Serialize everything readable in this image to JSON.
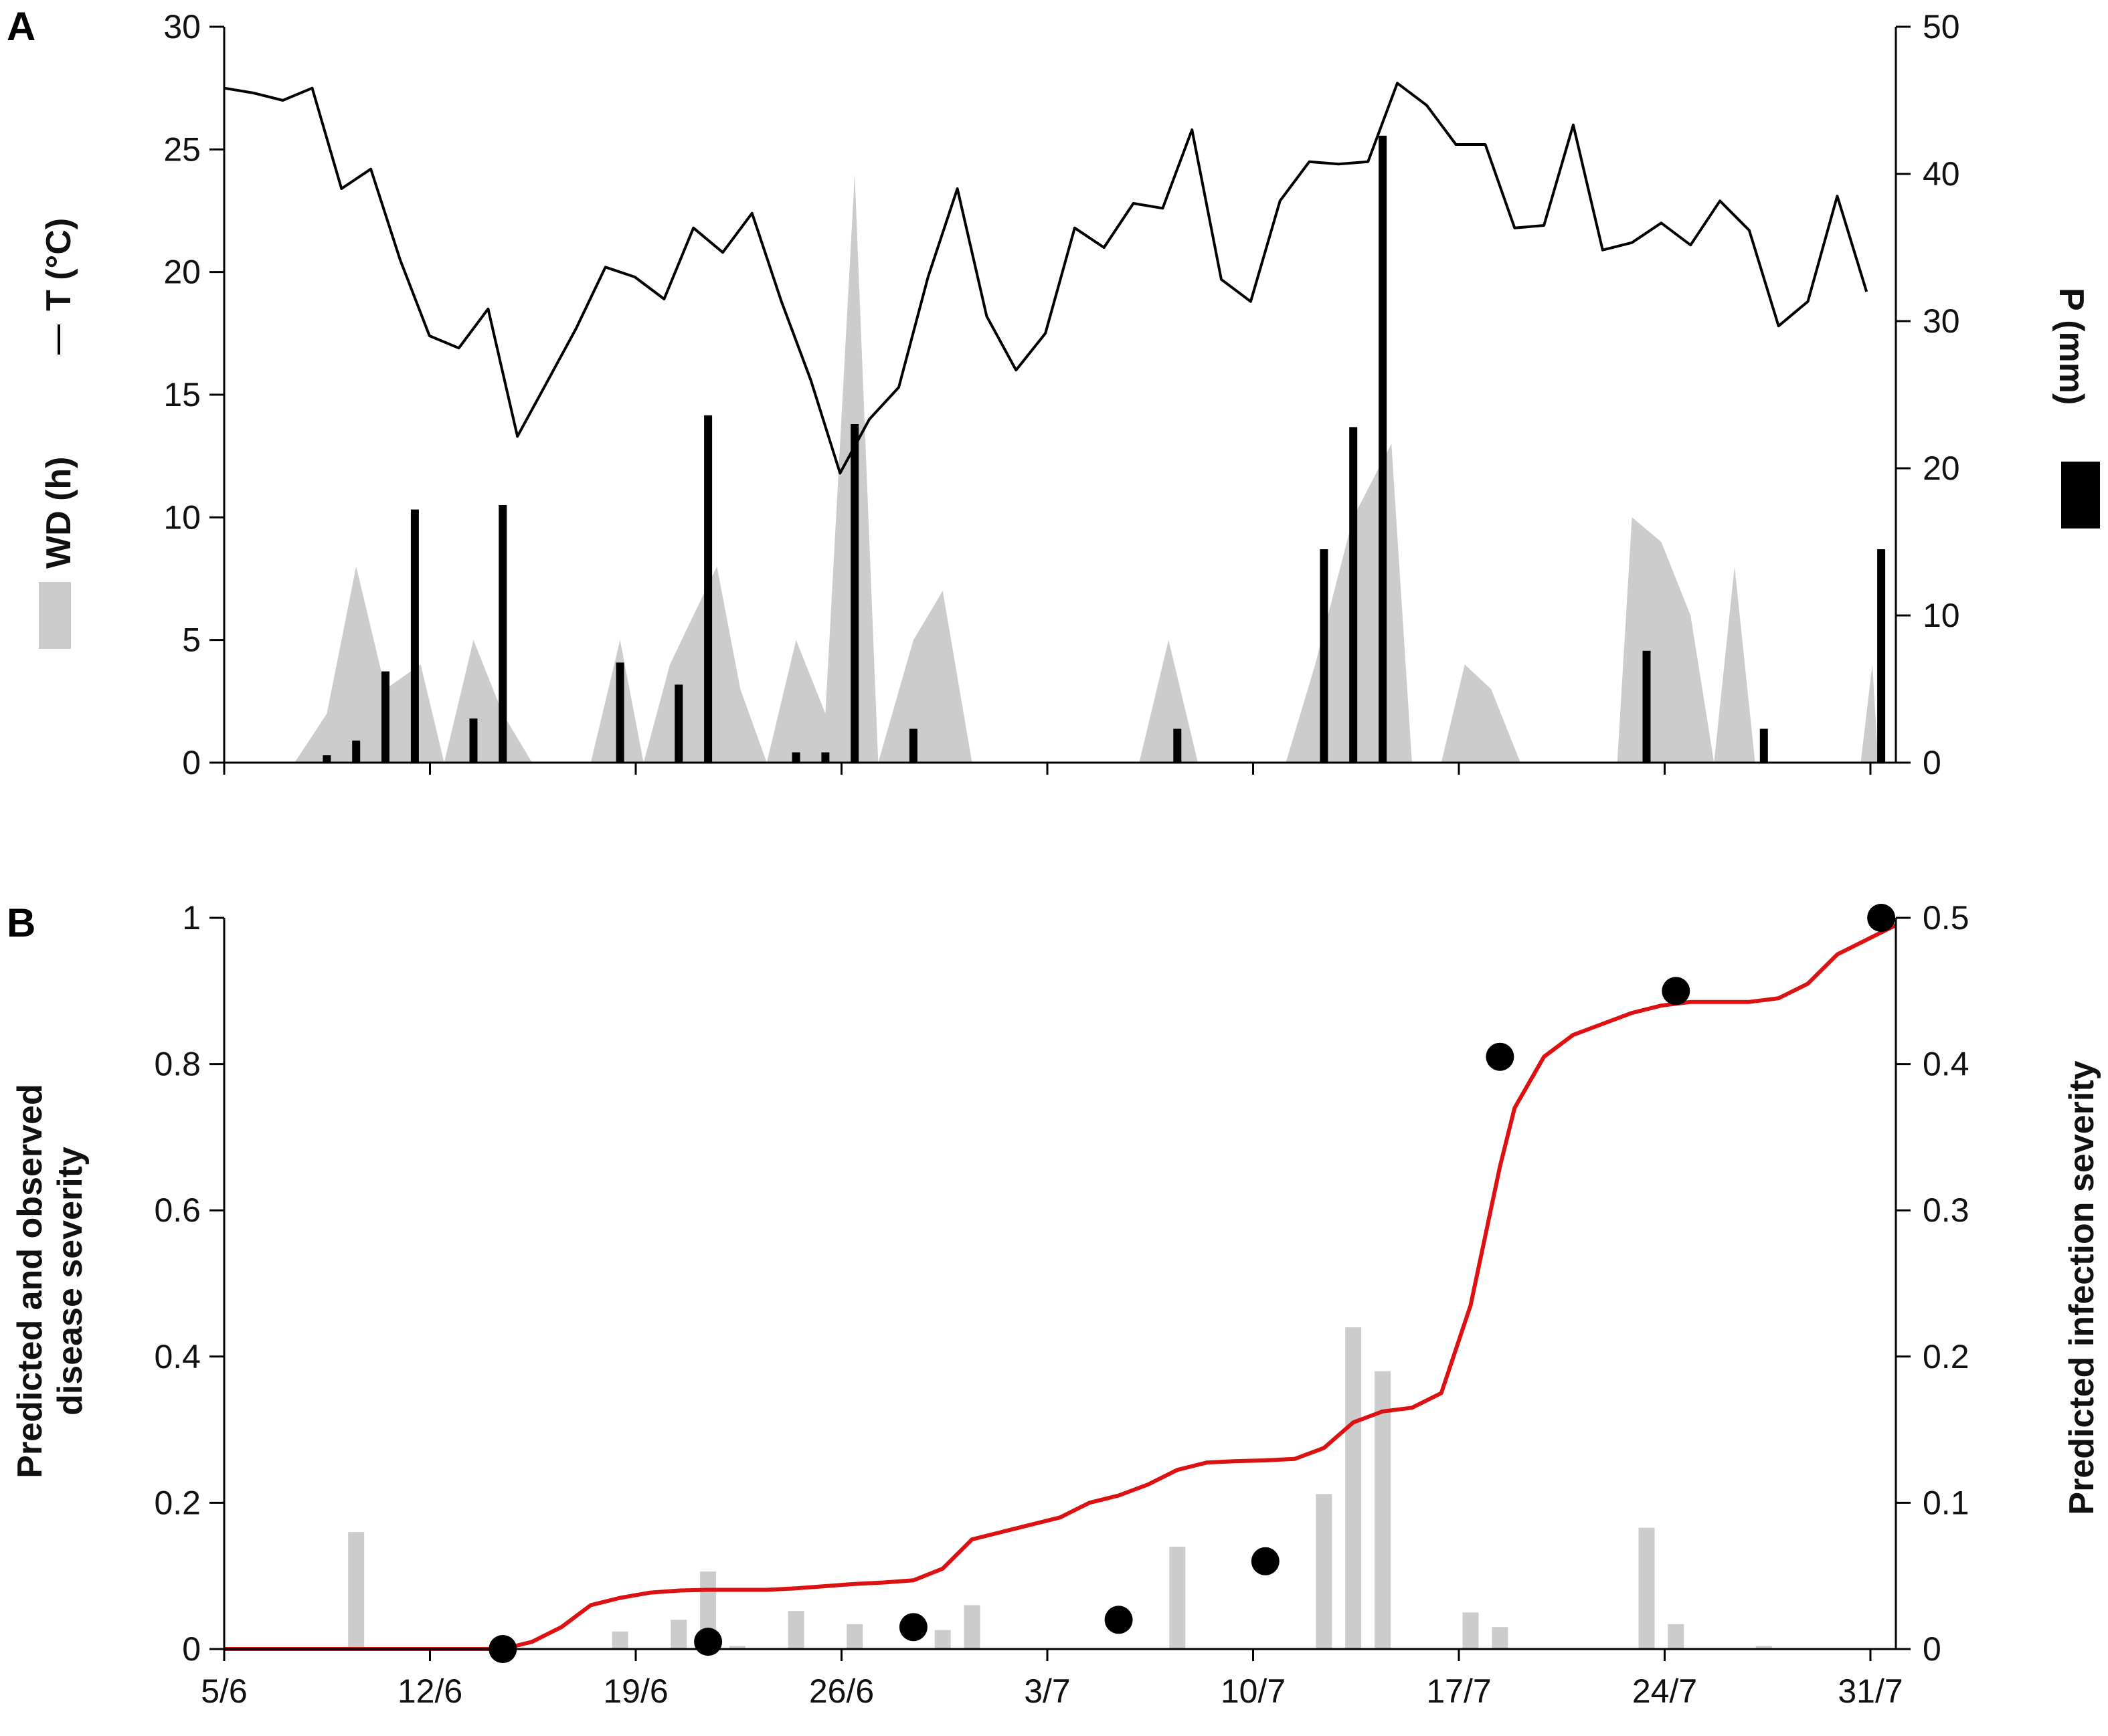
{
  "figure": {
    "panel_labels": [
      "A",
      "B"
    ]
  },
  "chart_data": [
    {
      "panel": "A",
      "type": "line",
      "title": "",
      "xlabel": "",
      "x_ticks": [
        "5/6",
        "12/6",
        "19/6",
        "26/6",
        "3/7",
        "10/7",
        "17/7",
        "24/7",
        "31/7"
      ],
      "x_range": [
        0,
        57
      ],
      "y_left": {
        "label_T": "T (°C)",
        "label_WD": "WD (h)",
        "ticks": [
          "0",
          "5",
          "10",
          "15",
          "20",
          "25",
          "30"
        ],
        "range": [
          0,
          30
        ]
      },
      "y_right": {
        "label": "P (mm)",
        "ticks": [
          "0",
          "10",
          "20",
          "30",
          "40",
          "50"
        ],
        "range": [
          0,
          50
        ]
      },
      "series": [
        {
          "name": "T (°C)",
          "kind": "line",
          "color": "#000000",
          "axis": "left",
          "points": [
            [
              0,
              27.5
            ],
            [
              1,
              27.3
            ],
            [
              2,
              27.0
            ],
            [
              3,
              27.5
            ],
            [
              4,
              23.4
            ],
            [
              5,
              24.2
            ],
            [
              6,
              20.5
            ],
            [
              7,
              17.4
            ],
            [
              8,
              16.9
            ],
            [
              9,
              18.5
            ],
            [
              10,
              13.3
            ],
            [
              11,
              15.5
            ],
            [
              12,
              17.7
            ],
            [
              13,
              20.2
            ],
            [
              14,
              19.8
            ],
            [
              15,
              18.9
            ],
            [
              16,
              21.8
            ],
            [
              17,
              20.8
            ],
            [
              18,
              22.4
            ],
            [
              19,
              18.8
            ],
            [
              20,
              15.6
            ],
            [
              21,
              11.8
            ],
            [
              22,
              14.0
            ],
            [
              23,
              15.3
            ],
            [
              24,
              19.8
            ],
            [
              25,
              23.4
            ],
            [
              26,
              18.2
            ],
            [
              27,
              16.0
            ],
            [
              28,
              17.5
            ],
            [
              29,
              21.8
            ],
            [
              30,
              21.0
            ],
            [
              31,
              22.8
            ],
            [
              32,
              22.6
            ],
            [
              33,
              25.8
            ],
            [
              34,
              19.7
            ],
            [
              35,
              18.8
            ],
            [
              36,
              22.9
            ],
            [
              37,
              24.5
            ],
            [
              38,
              24.4
            ],
            [
              39,
              24.5
            ],
            [
              40,
              27.7
            ],
            [
              41,
              26.8
            ],
            [
              42,
              25.2
            ],
            [
              43,
              25.2
            ],
            [
              44,
              21.8
            ],
            [
              45,
              21.9
            ],
            [
              46,
              26.0
            ],
            [
              47,
              20.9
            ],
            [
              48,
              21.2
            ],
            [
              49,
              22.0
            ],
            [
              50,
              21.1
            ],
            [
              51,
              22.9
            ],
            [
              52,
              21.7
            ],
            [
              53,
              17.8
            ],
            [
              54,
              18.8
            ],
            [
              55,
              23.1
            ],
            [
              56,
              19.2
            ]
          ]
        },
        {
          "name": "WD (h)",
          "kind": "area",
          "color": "#cccccc",
          "axis": "left",
          "points": [
            [
              2.4,
              0
            ],
            [
              3.5,
              2
            ],
            [
              4.5,
              8
            ],
            [
              5.5,
              3
            ],
            [
              6.7,
              4
            ],
            [
              7.5,
              0
            ],
            [
              8.5,
              5
            ],
            [
              9.5,
              2
            ],
            [
              10.5,
              0
            ],
            [
              12.5,
              0
            ],
            [
              13.5,
              5
            ],
            [
              14.3,
              0
            ],
            [
              15.2,
              4
            ],
            [
              16.8,
              8
            ],
            [
              17.6,
              3
            ],
            [
              18.5,
              0
            ],
            [
              19.5,
              5
            ],
            [
              20.5,
              2
            ],
            [
              21.5,
              24
            ],
            [
              22.3,
              0
            ],
            [
              23.5,
              5
            ],
            [
              24.5,
              7
            ],
            [
              25.5,
              0
            ],
            [
              31.2,
              0
            ],
            [
              32.2,
              5
            ],
            [
              33.2,
              0
            ],
            [
              36.2,
              0
            ],
            [
              37.2,
              4
            ],
            [
              38.5,
              10
            ],
            [
              39.8,
              13
            ],
            [
              40.5,
              0
            ],
            [
              41.5,
              0
            ],
            [
              42.3,
              4
            ],
            [
              43.2,
              3
            ],
            [
              44.2,
              0
            ],
            [
              47.5,
              0
            ],
            [
              48,
              10
            ],
            [
              49,
              9
            ],
            [
              50,
              6
            ],
            [
              50.8,
              0
            ],
            [
              51.5,
              8
            ],
            [
              52.2,
              0
            ],
            [
              55.8,
              0
            ],
            [
              56.2,
              4
            ],
            [
              56.4,
              0
            ]
          ]
        },
        {
          "name": "P (mm)",
          "kind": "bar",
          "color": "#000000",
          "axis": "right",
          "bars": [
            [
              3.5,
              0.5
            ],
            [
              4.5,
              1.5
            ],
            [
              5.5,
              6.2
            ],
            [
              6.5,
              17.2
            ],
            [
              8.5,
              3.0
            ],
            [
              9.5,
              17.5
            ],
            [
              13.5,
              6.8
            ],
            [
              15.5,
              5.3
            ],
            [
              16.5,
              23.6
            ],
            [
              19.5,
              0.7
            ],
            [
              20.5,
              0.7
            ],
            [
              21.5,
              23.0
            ],
            [
              23.5,
              2.3
            ],
            [
              32.5,
              2.3
            ],
            [
              37.5,
              14.5
            ],
            [
              38.5,
              22.8
            ],
            [
              39.5,
              42.6
            ],
            [
              48.5,
              7.6
            ],
            [
              52.5,
              2.3
            ],
            [
              56.5,
              14.5
            ]
          ]
        }
      ]
    },
    {
      "panel": "B",
      "type": "line",
      "title": "",
      "xlabel": "",
      "x_ticks": [
        "5/6",
        "12/6",
        "19/6",
        "26/6",
        "3/7",
        "10/7",
        "17/7",
        "24/7",
        "31/7"
      ],
      "x_range": [
        0,
        57
      ],
      "y_left": {
        "label_line1": "Predicted and observed",
        "label_line2": "disease severity",
        "ticks": [
          "0",
          "0.2",
          "0.4",
          "0.6",
          "0.8",
          "1"
        ],
        "range": [
          0,
          1
        ]
      },
      "y_right": {
        "label": "Predicted infection severity",
        "ticks": [
          "0",
          "0.1",
          "0.2",
          "0.3",
          "0.4",
          "0.5"
        ],
        "range": [
          0,
          0.5
        ]
      },
      "series": [
        {
          "name": "Predicted disease severity",
          "kind": "line",
          "color": "#dd1111",
          "axis": "left",
          "points": [
            [
              0,
              0
            ],
            [
              9.5,
              0
            ],
            [
              10.5,
              0.01
            ],
            [
              11.5,
              0.03
            ],
            [
              12.5,
              0.06
            ],
            [
              13.5,
              0.07
            ],
            [
              14.5,
              0.077
            ],
            [
              15.5,
              0.08
            ],
            [
              16.5,
              0.081
            ],
            [
              17.5,
              0.081
            ],
            [
              18.5,
              0.081
            ],
            [
              19.5,
              0.083
            ],
            [
              20.5,
              0.086
            ],
            [
              21.5,
              0.089
            ],
            [
              22.5,
              0.091
            ],
            [
              23.5,
              0.094
            ],
            [
              24.5,
              0.11
            ],
            [
              25.5,
              0.15
            ],
            [
              26.5,
              0.16
            ],
            [
              27.5,
              0.17
            ],
            [
              28.5,
              0.18
            ],
            [
              29.5,
              0.2
            ],
            [
              30.5,
              0.21
            ],
            [
              31.5,
              0.225
            ],
            [
              32.5,
              0.245
            ],
            [
              33.5,
              0.255
            ],
            [
              34.5,
              0.257
            ],
            [
              35.5,
              0.258
            ],
            [
              36.5,
              0.26
            ],
            [
              37.5,
              0.275
            ],
            [
              38.5,
              0.31
            ],
            [
              39.5,
              0.325
            ],
            [
              40.5,
              0.33
            ],
            [
              41.5,
              0.35
            ],
            [
              42.5,
              0.47
            ],
            [
              43.5,
              0.66
            ],
            [
              44,
              0.74
            ],
            [
              45,
              0.81
            ],
            [
              46,
              0.84
            ],
            [
              47,
              0.855
            ],
            [
              48,
              0.87
            ],
            [
              49,
              0.88
            ],
            [
              50,
              0.885
            ],
            [
              51,
              0.885
            ],
            [
              52,
              0.885
            ],
            [
              53,
              0.89
            ],
            [
              54,
              0.91
            ],
            [
              55,
              0.95
            ],
            [
              56,
              0.97
            ],
            [
              57,
              0.99
            ]
          ]
        },
        {
          "name": "Observed disease severity",
          "kind": "scatter",
          "color": "#000000",
          "axis": "left",
          "points": [
            [
              9.5,
              0
            ],
            [
              16.5,
              0.01
            ],
            [
              23.5,
              0.03
            ],
            [
              30.5,
              0.04
            ],
            [
              35.5,
              0.12
            ],
            [
              43.5,
              0.81
            ],
            [
              49.5,
              0.9
            ],
            [
              56.5,
              1.0
            ]
          ]
        },
        {
          "name": "Predicted infection severity",
          "kind": "bar",
          "color": "#cccccc",
          "axis": "right",
          "bars": [
            [
              4.5,
              0.08
            ],
            [
              13.5,
              0.012
            ],
            [
              15.5,
              0.02
            ],
            [
              16.5,
              0.053
            ],
            [
              17.5,
              0.002
            ],
            [
              19.5,
              0.026
            ],
            [
              21.5,
              0.017
            ],
            [
              24.5,
              0.013
            ],
            [
              25.5,
              0.03
            ],
            [
              32.5,
              0.07
            ],
            [
              37.5,
              0.106
            ],
            [
              38.5,
              0.22
            ],
            [
              39.5,
              0.19
            ],
            [
              42.5,
              0.025
            ],
            [
              43.5,
              0.015
            ],
            [
              48.5,
              0.083
            ],
            [
              49.5,
              0.017
            ],
            [
              52.5,
              0.002
            ]
          ]
        }
      ]
    }
  ]
}
